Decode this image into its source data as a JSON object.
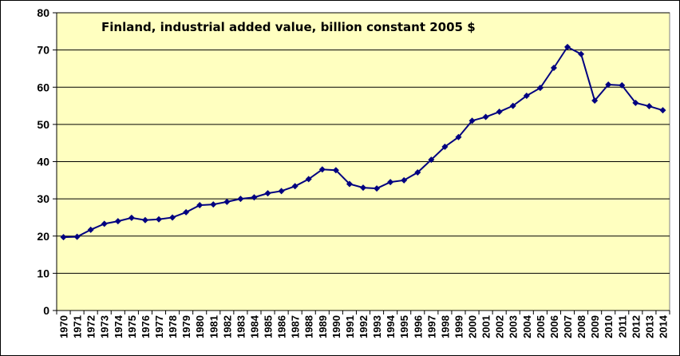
{
  "chart_data": {
    "type": "line",
    "title": "Finland, industrial added value, billion constant 2005 $",
    "xlabel": "",
    "ylabel": "",
    "ylim": [
      0,
      80
    ],
    "yticks": [
      0,
      10,
      20,
      30,
      40,
      50,
      60,
      70,
      80
    ],
    "grid": "horizontal",
    "legend": "none",
    "categories": [
      "1970",
      "1971",
      "1972",
      "1973",
      "1974",
      "1975",
      "1976",
      "1977",
      "1978",
      "1979",
      "1980",
      "1981",
      "1982",
      "1983",
      "1984",
      "1985",
      "1986",
      "1987",
      "1988",
      "1989",
      "1990",
      "1991",
      "1992",
      "1993",
      "1994",
      "1995",
      "1996",
      "1997",
      "1998",
      "1999",
      "2000",
      "2001",
      "2002",
      "2003",
      "2004",
      "2005",
      "2006",
      "2007",
      "2008",
      "2009",
      "2010",
      "2011",
      "2012",
      "2013",
      "2014"
    ],
    "series": [
      {
        "values": [
          19.7,
          19.8,
          21.7,
          23.3,
          24.0,
          24.9,
          24.3,
          24.5,
          25.0,
          26.4,
          28.3,
          28.5,
          29.2,
          30.0,
          30.4,
          31.5,
          32.1,
          33.4,
          35.3,
          37.9,
          37.7,
          34.0,
          33.0,
          32.8,
          34.5,
          35.0,
          37.1,
          40.5,
          44.0,
          46.6,
          51.0,
          52.0,
          53.4,
          55.0,
          57.7,
          59.8,
          65.2,
          70.8,
          68.9,
          56.4,
          60.7,
          60.5,
          55.8,
          54.9,
          53.8
        ]
      }
    ],
    "colors": {
      "plot_bg": "#FFFFC0",
      "line": "#000080",
      "grid": "#000000"
    }
  }
}
